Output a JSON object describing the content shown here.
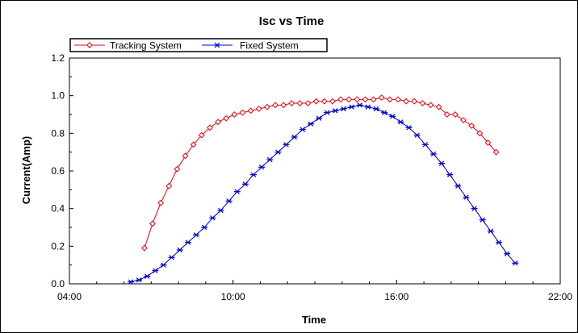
{
  "chart_data": {
    "type": "line",
    "title": "Isc vs Time",
    "xlabel": "Time",
    "ylabel": "Current(Amp)",
    "xlim": [
      "04:00",
      "22:00"
    ],
    "xticks": [
      "04:00",
      "10:00",
      "16:00",
      "22:00"
    ],
    "ylim": [
      0,
      1.2
    ],
    "yticks": [
      "0.0",
      "0.2",
      "0.4",
      "0.6",
      "0.8",
      "1.0",
      "1.2"
    ],
    "grid": false,
    "legend_position": "top-left",
    "series": [
      {
        "name": "Tracking System",
        "color": "#e8000b",
        "marker": "diamond",
        "x": [
          "06:45",
          "07:03",
          "07:21",
          "07:39",
          "07:57",
          "08:15",
          "08:33",
          "08:51",
          "09:09",
          "09:27",
          "09:45",
          "10:03",
          "10:21",
          "10:39",
          "10:57",
          "11:15",
          "11:33",
          "11:51",
          "12:09",
          "12:27",
          "12:45",
          "13:03",
          "13:21",
          "13:39",
          "13:57",
          "14:15",
          "14:33",
          "14:51",
          "15:09",
          "15:27",
          "15:45",
          "16:03",
          "16:21",
          "16:39",
          "16:57",
          "17:15",
          "17:33",
          "17:51",
          "18:09",
          "18:27",
          "18:45",
          "19:03",
          "19:21",
          "19:39"
        ],
        "y": [
          0.19,
          0.32,
          0.43,
          0.52,
          0.61,
          0.68,
          0.74,
          0.79,
          0.83,
          0.86,
          0.88,
          0.9,
          0.91,
          0.92,
          0.93,
          0.94,
          0.95,
          0.95,
          0.96,
          0.96,
          0.96,
          0.97,
          0.97,
          0.97,
          0.98,
          0.98,
          0.98,
          0.98,
          0.98,
          0.99,
          0.98,
          0.98,
          0.97,
          0.97,
          0.96,
          0.95,
          0.94,
          0.9,
          0.9,
          0.87,
          0.84,
          0.8,
          0.75,
          0.7
        ]
      },
      {
        "name": "Fixed System",
        "color": "#0000cc",
        "marker": "asterisk",
        "x": [
          "06:15",
          "06:33",
          "06:51",
          "07:09",
          "07:27",
          "07:45",
          "08:03",
          "08:21",
          "08:39",
          "08:57",
          "09:15",
          "09:33",
          "09:51",
          "10:09",
          "10:27",
          "10:45",
          "11:03",
          "11:21",
          "11:39",
          "11:57",
          "12:15",
          "12:33",
          "12:51",
          "13:09",
          "13:27",
          "13:45",
          "14:03",
          "14:21",
          "14:39",
          "14:57",
          "15:15",
          "15:33",
          "15:51",
          "16:09",
          "16:27",
          "16:45",
          "17:03",
          "17:21",
          "17:39",
          "17:57",
          "18:15",
          "18:33",
          "18:51",
          "19:09",
          "19:27",
          "19:45",
          "20:03",
          "20:21"
        ],
        "y": [
          0.01,
          0.02,
          0.04,
          0.07,
          0.1,
          0.14,
          0.18,
          0.22,
          0.26,
          0.3,
          0.35,
          0.39,
          0.44,
          0.49,
          0.53,
          0.58,
          0.62,
          0.66,
          0.7,
          0.74,
          0.78,
          0.82,
          0.85,
          0.88,
          0.91,
          0.92,
          0.93,
          0.94,
          0.95,
          0.94,
          0.93,
          0.91,
          0.89,
          0.86,
          0.83,
          0.79,
          0.74,
          0.69,
          0.64,
          0.58,
          0.52,
          0.46,
          0.4,
          0.34,
          0.28,
          0.22,
          0.16,
          0.11
        ]
      }
    ]
  }
}
